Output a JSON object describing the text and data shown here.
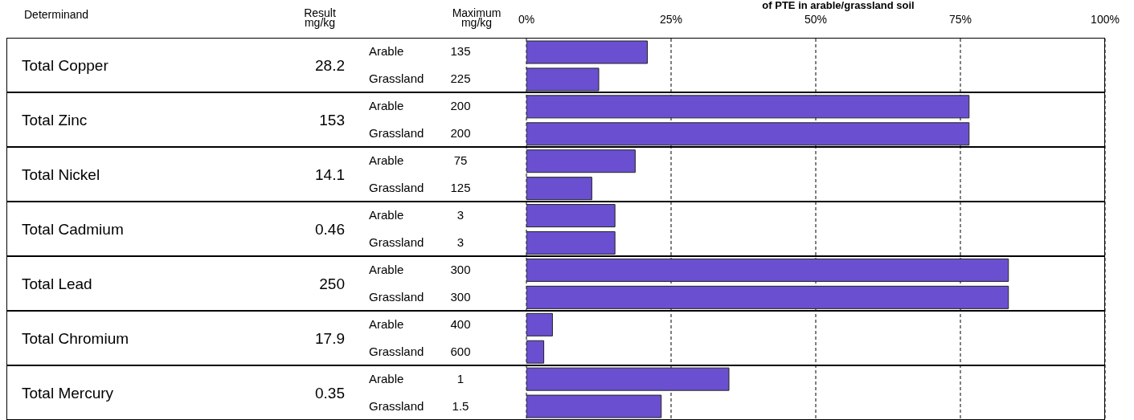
{
  "chart_data": {
    "type": "bar",
    "orientation": "horizontal",
    "title": "of PTE in arable/grassland soil",
    "categories": [
      "Arable",
      "Grassland",
      "Arable",
      "Grassland",
      "Arable",
      "Grassland",
      "Arable",
      "Grassland",
      "Arable",
      "Grassland",
      "Arable",
      "Grassland",
      "Arable",
      "Grassland"
    ],
    "values": [
      20.9,
      12.5,
      76.5,
      76.5,
      18.8,
      11.3,
      15.3,
      15.3,
      83.3,
      83.3,
      4.5,
      3.0,
      35,
      23.3
    ],
    "color": "#6a50d0",
    "xlim": [
      0,
      100
    ],
    "xticks": [
      {
        "value": 0,
        "label": "0%"
      },
      {
        "value": 25,
        "label": "25%"
      },
      {
        "value": 50,
        "label": "50%"
      },
      {
        "value": 75,
        "label": "75%"
      },
      {
        "value": 100,
        "label": "100%"
      }
    ],
    "grid": "x",
    "line_style": "dashed",
    "annotations": [
      "Determinand",
      "Result mg/kg",
      "Maximum mg/kg",
      "Total Copper",
      "28.2",
      "135",
      "225",
      "Total Zinc",
      "153",
      "200",
      "200",
      "Total Nickel",
      "14.1",
      "75",
      "125",
      "Total Cadmium",
      "0.46",
      "3",
      "3",
      "Total Lead",
      "250",
      "300",
      "300",
      "Total Chromium",
      "17.9",
      "400",
      "600",
      "Total Mercury",
      "0.35",
      "1",
      "1.5"
    ]
  }
}
